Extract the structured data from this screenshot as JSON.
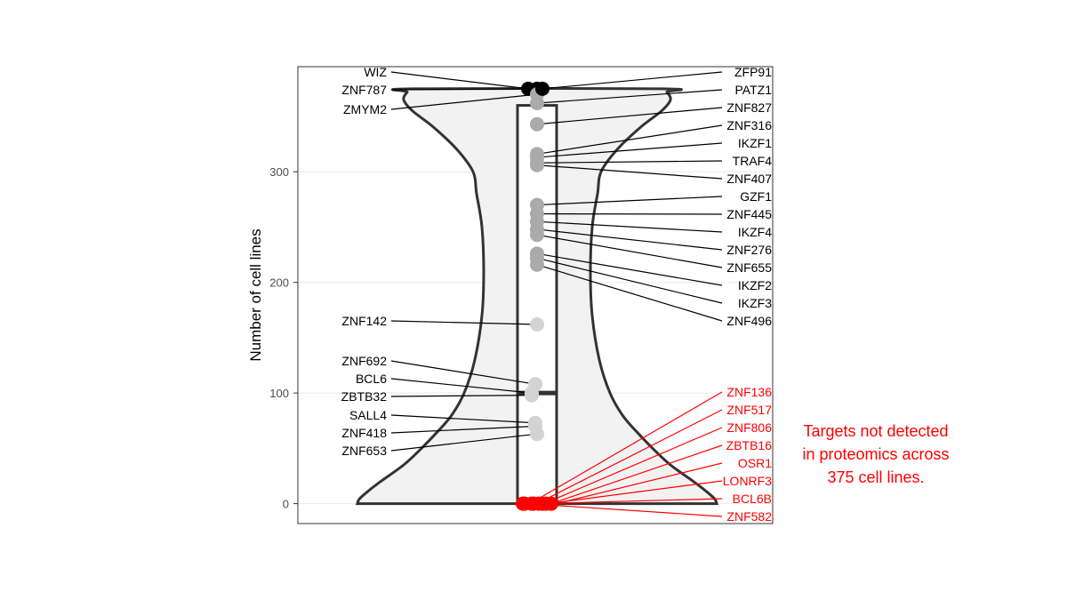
{
  "chart_data": {
    "type": "violin",
    "title": "",
    "xlabel": "",
    "ylabel": "Number of cell lines",
    "ylim": [
      -18,
      395
    ],
    "yticks": [
      0,
      100,
      200,
      300
    ],
    "grid": true,
    "box": {
      "min": 0,
      "q1": 0,
      "median": 100,
      "q3": 360,
      "max": 375
    },
    "points_left": [
      {
        "name": "WIZ",
        "value": 375,
        "color": "#000000"
      },
      {
        "name": "ZNF787",
        "value": 375,
        "color": "#000000"
      },
      {
        "name": "ZMYM2",
        "value": 370,
        "color": "#aaaaaa"
      },
      {
        "name": "ZNF142",
        "value": 162,
        "color": "#d3d3d3"
      },
      {
        "name": "ZNF692",
        "value": 108,
        "color": "#d3d3d3"
      },
      {
        "name": "BCL6",
        "value": 100,
        "color": "#d3d3d3"
      },
      {
        "name": "ZBTB32",
        "value": 98,
        "color": "#d3d3d3"
      },
      {
        "name": "SALL4",
        "value": 73,
        "color": "#d3d3d3"
      },
      {
        "name": "ZNF418",
        "value": 70,
        "color": "#d3d3d3"
      },
      {
        "name": "ZNF653",
        "value": 63,
        "color": "#d3d3d3"
      }
    ],
    "points_right": [
      {
        "name": "ZFP91",
        "value": 375,
        "color": "#000000"
      },
      {
        "name": "PATZ1",
        "value": 362,
        "color": "#aaaaaa"
      },
      {
        "name": "ZNF827",
        "value": 343,
        "color": "#aaaaaa"
      },
      {
        "name": "ZNF316",
        "value": 316,
        "color": "#aaaaaa"
      },
      {
        "name": "IKZF1",
        "value": 313,
        "color": "#aaaaaa"
      },
      {
        "name": "TRAF4",
        "value": 308,
        "color": "#aaaaaa"
      },
      {
        "name": "ZNF407",
        "value": 306,
        "color": "#aaaaaa"
      },
      {
        "name": "GZF1",
        "value": 270,
        "color": "#aaaaaa"
      },
      {
        "name": "ZNF445",
        "value": 262,
        "color": "#aaaaaa"
      },
      {
        "name": "IKZF4",
        "value": 255,
        "color": "#aaaaaa"
      },
      {
        "name": "ZNF276",
        "value": 248,
        "color": "#aaaaaa"
      },
      {
        "name": "ZNF655",
        "value": 243,
        "color": "#aaaaaa"
      },
      {
        "name": "IKZF2",
        "value": 226,
        "color": "#aaaaaa"
      },
      {
        "name": "IKZF3",
        "value": 222,
        "color": "#aaaaaa"
      },
      {
        "name": "ZNF496",
        "value": 216,
        "color": "#aaaaaa"
      }
    ],
    "points_zero": [
      {
        "name": "ZNF136",
        "value": 0,
        "color": "#ff0000"
      },
      {
        "name": "ZNF517",
        "value": 0,
        "color": "#ff0000"
      },
      {
        "name": "ZNF806",
        "value": 0,
        "color": "#ff0000"
      },
      {
        "name": "ZBTB16",
        "value": 0,
        "color": "#ff0000"
      },
      {
        "name": "OSR1",
        "value": 0,
        "color": "#ff0000"
      },
      {
        "name": "LONRF3",
        "value": 0,
        "color": "#ff0000"
      },
      {
        "name": "BCL6B",
        "value": 0,
        "color": "#ff0000"
      },
      {
        "name": "ZNF582",
        "value": 0,
        "color": "#ff0000"
      }
    ]
  },
  "annotation": {
    "line1": "Targets not detected",
    "line2": "in proteomics across",
    "line3": "375 cell lines."
  }
}
